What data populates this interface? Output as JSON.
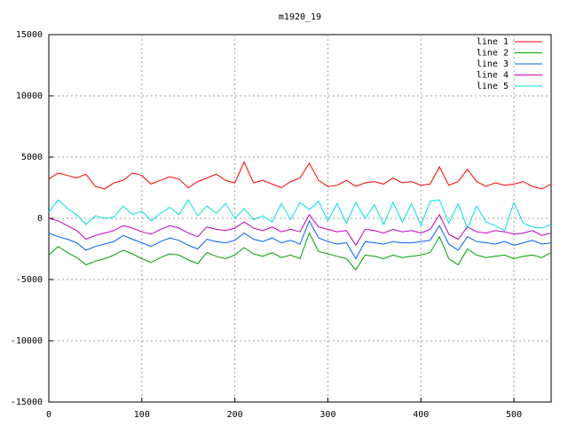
{
  "chart_data": {
    "type": "line",
    "title": "m1920_19",
    "x": [
      0,
      10,
      20,
      30,
      40,
      50,
      60,
      70,
      80,
      90,
      100,
      110,
      120,
      130,
      140,
      150,
      160,
      170,
      180,
      190,
      200,
      210,
      220,
      230,
      240,
      250,
      260,
      270,
      280,
      290,
      300,
      310,
      320,
      330,
      340,
      350,
      360,
      370,
      380,
      390,
      400,
      410,
      420,
      430,
      440,
      450,
      460,
      470,
      480,
      490,
      500,
      510,
      520,
      530,
      540
    ],
    "series": [
      {
        "name": "line 1",
        "color": "#ff0000",
        "values": [
          3200,
          3700,
          3500,
          3300,
          3600,
          2600,
          2400,
          2900,
          3100,
          3700,
          3500,
          2800,
          3100,
          3400,
          3200,
          2500,
          3000,
          3300,
          3600,
          3100,
          2900,
          4600,
          2900,
          3100,
          2800,
          2500,
          3000,
          3300,
          4500,
          3100,
          2600,
          2700,
          3100,
          2600,
          2900,
          3000,
          2800,
          3300,
          2900,
          3000,
          2700,
          2800,
          4200,
          2700,
          3000,
          4000,
          3000,
          2600,
          2900,
          2700,
          2800,
          3000,
          2600,
          2400,
          2800
        ]
      },
      {
        "name": "line 2",
        "color": "#00a000",
        "values": [
          -3000,
          -2300,
          -2800,
          -3200,
          -3800,
          -3500,
          -3300,
          -3000,
          -2600,
          -2900,
          -3300,
          -3600,
          -3200,
          -2900,
          -3000,
          -3400,
          -3700,
          -2800,
          -3100,
          -3300,
          -3000,
          -2400,
          -2900,
          -3100,
          -2800,
          -3200,
          -3000,
          -3300,
          -1200,
          -2700,
          -2900,
          -3100,
          -3300,
          -4200,
          -3000,
          -3100,
          -3300,
          -3000,
          -3200,
          -3100,
          -3000,
          -2800,
          -1500,
          -3300,
          -3800,
          -2500,
          -3000,
          -3200,
          -3100,
          -3000,
          -3300,
          -3100,
          -3000,
          -3200,
          -2800
        ]
      },
      {
        "name": "line 3",
        "color": "#0060ff",
        "values": [
          -1200,
          -1500,
          -1700,
          -2000,
          -2600,
          -2300,
          -2100,
          -1900,
          -1400,
          -1700,
          -2000,
          -2300,
          -1900,
          -1600,
          -1800,
          -2200,
          -2500,
          -1700,
          -1900,
          -2000,
          -1800,
          -1200,
          -1700,
          -1900,
          -1600,
          -2000,
          -1800,
          -2100,
          -200,
          -1600,
          -1900,
          -2100,
          -2000,
          -3300,
          -1900,
          -2000,
          -2100,
          -1900,
          -2000,
          -2000,
          -1900,
          -1800,
          -600,
          -2100,
          -2600,
          -1500,
          -1900,
          -2000,
          -2100,
          -1900,
          -2200,
          -2000,
          -1800,
          -2100,
          -2000
        ]
      },
      {
        "name": "line 4",
        "color": "#c000c0",
        "values": [
          0,
          -200,
          -600,
          -1000,
          -1700,
          -1400,
          -1200,
          -1000,
          -600,
          -800,
          -1100,
          -1300,
          -900,
          -600,
          -800,
          -1200,
          -1500,
          -700,
          -900,
          -1000,
          -800,
          -300,
          -800,
          -1000,
          -700,
          -1100,
          -900,
          -1100,
          300,
          -700,
          -900,
          -1100,
          -1000,
          -2200,
          -900,
          -1000,
          -1200,
          -900,
          -1100,
          -1000,
          -1200,
          -900,
          300,
          -1300,
          -1700,
          -700,
          -1100,
          -1200,
          -1000,
          -1100,
          -1300,
          -1200,
          -1000,
          -1400,
          -1200
        ]
      },
      {
        "name": "line 5",
        "color": "#00e0e0",
        "values": [
          500,
          1500,
          800,
          300,
          -500,
          200,
          0,
          100,
          1000,
          300,
          600,
          -200,
          400,
          900,
          300,
          1500,
          200,
          1000,
          400,
          1200,
          0,
          800,
          -100,
          200,
          -300,
          1200,
          -100,
          1300,
          700,
          1400,
          -200,
          1200,
          -400,
          1300,
          0,
          1100,
          -500,
          1300,
          -300,
          1200,
          -600,
          1400,
          1500,
          -400,
          1200,
          -800,
          1000,
          -300,
          -600,
          -1000,
          1300,
          -400,
          -700,
          -800,
          -500
        ]
      }
    ],
    "xlim": [
      0,
      540
    ],
    "ylim": [
      -15000,
      15000
    ],
    "xticks": [
      0,
      100,
      200,
      300,
      400,
      500
    ],
    "yticks": [
      -15000,
      -10000,
      -5000,
      0,
      5000,
      10000,
      15000
    ],
    "grid": true,
    "legend": "upper right"
  }
}
